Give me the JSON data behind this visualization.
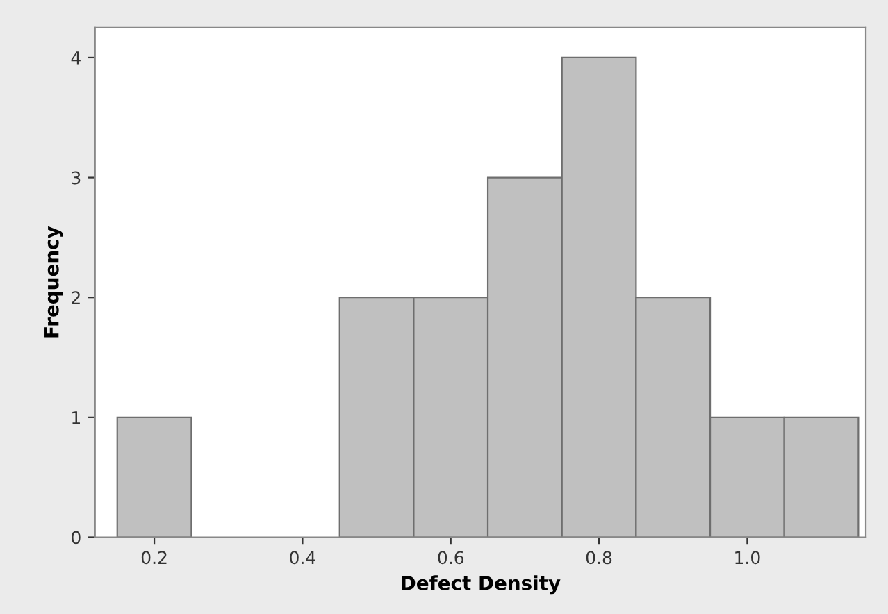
{
  "chart_data": {
    "type": "histogram",
    "xlabel": "Defect Density",
    "ylabel": "Frequency",
    "bins": [
      0.15,
      0.25,
      0.35,
      0.45,
      0.55,
      0.65,
      0.75,
      0.85,
      0.95,
      1.05,
      1.15
    ],
    "values": [
      1,
      0,
      0,
      2,
      2,
      3,
      4,
      2,
      1,
      1
    ],
    "color": "#c0c0c0",
    "xlim": [
      0.12,
      1.16
    ],
    "ylim": [
      0,
      4.25
    ],
    "xticks": [
      {
        "value": 0.2,
        "label": "0.2"
      },
      {
        "value": 0.4,
        "label": "0.4"
      },
      {
        "value": 0.6,
        "label": "0.6"
      },
      {
        "value": 0.8,
        "label": "0.8"
      },
      {
        "value": 1.0,
        "label": "1.0"
      }
    ],
    "yticks": [
      0,
      1,
      2,
      3,
      4
    ],
    "grid": false
  }
}
